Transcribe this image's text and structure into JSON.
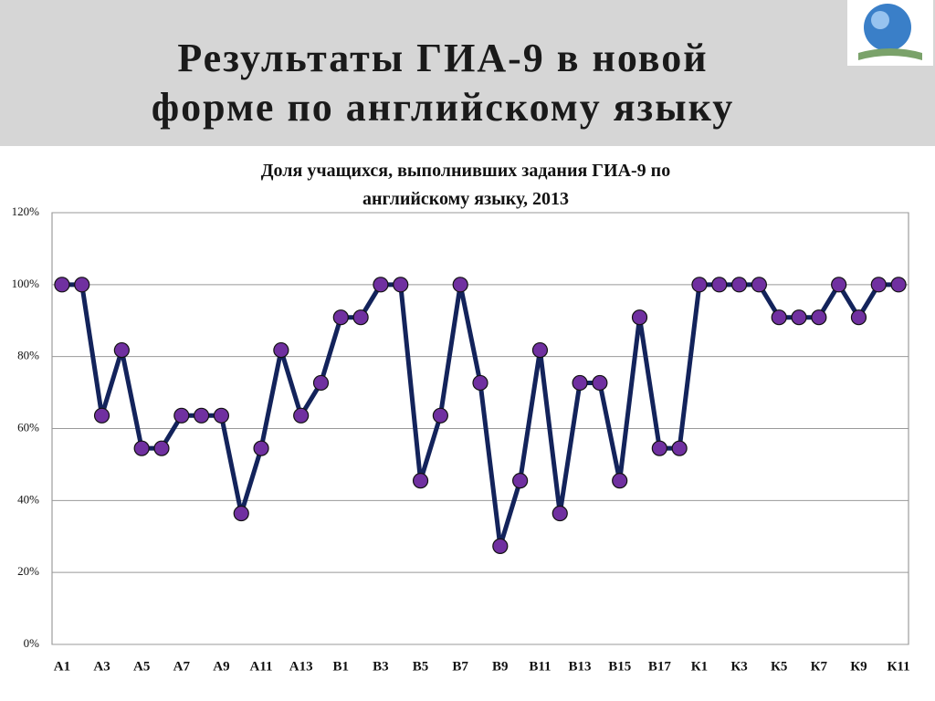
{
  "header": {
    "title_lines": [
      "Результаты ГИА-9 в новой",
      "форме по английскому языку"
    ]
  },
  "chart_data": {
    "type": "line",
    "title_lines": [
      "Доля учащихся, выполнивших задания ГИА-9 по",
      "английскому языку, 2013"
    ],
    "categories": [
      "А1",
      null,
      "А3",
      null,
      "А5",
      null,
      "А7",
      null,
      "А9",
      null,
      "А11",
      null,
      "А13",
      null,
      "В1",
      null,
      "В3",
      null,
      "В5",
      null,
      "В7",
      null,
      "В9",
      null,
      "В11",
      null,
      "В13",
      null,
      "В15",
      null,
      "В17",
      null,
      "К1",
      null,
      "К3",
      null,
      "К5",
      null,
      "К7",
      null,
      "К9",
      null,
      "К11"
    ],
    "series": [
      {
        "color": "#13235b",
        "marker_color": "#7030a0",
        "values": [
          100,
          100,
          63.6,
          81.8,
          54.5,
          54.5,
          63.6,
          63.6,
          63.6,
          36.4,
          54.5,
          81.8,
          63.6,
          72.7,
          90.9,
          90.9,
          100,
          100,
          45.5,
          63.6,
          100,
          72.7,
          27.3,
          45.5,
          81.8,
          36.4,
          72.7,
          72.7,
          45.5,
          90.9,
          54.5,
          54.5,
          100,
          100,
          100,
          100,
          90.9,
          90.9,
          90.9,
          100,
          90.9,
          100,
          100
        ]
      }
    ],
    "ylim": [
      0,
      120
    ],
    "yticks": [
      {
        "value": 0,
        "label": "0%"
      },
      {
        "value": 20,
        "label": "20%"
      },
      {
        "value": 40,
        "label": "40%"
      },
      {
        "value": 60,
        "label": "60%"
      },
      {
        "value": 80,
        "label": "80%"
      },
      {
        "value": 100,
        "label": "100%"
      },
      {
        "value": 120,
        "label": "120%"
      }
    ],
    "grid": true
  }
}
